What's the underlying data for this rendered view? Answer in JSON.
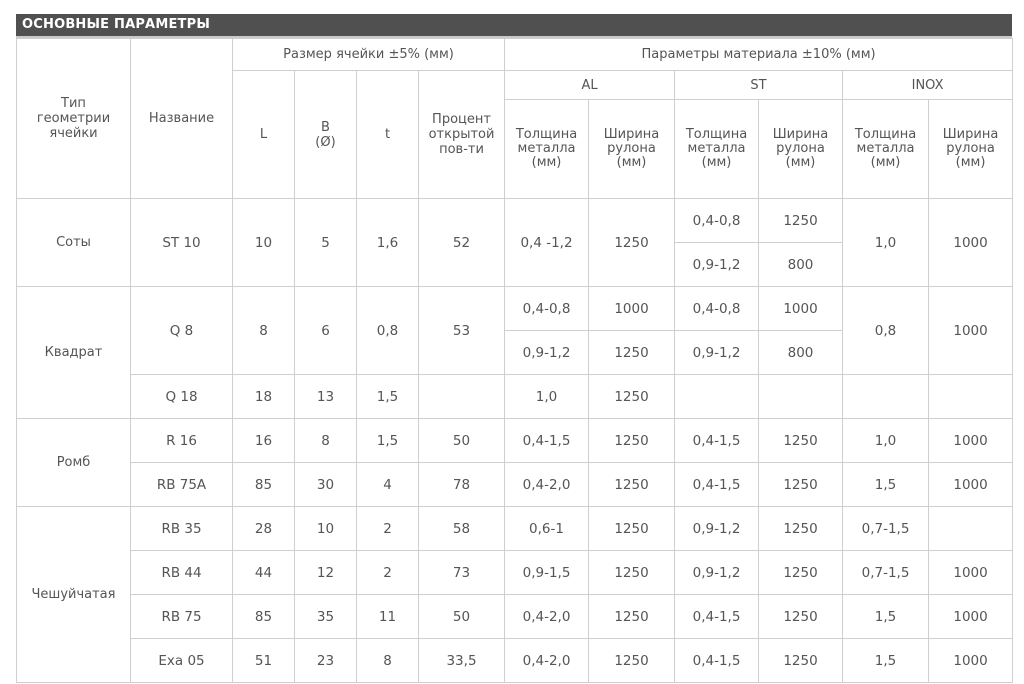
{
  "title": "ОСНОВНЫЕ ПАРАМЕТРЫ",
  "headers": {
    "type": "Тип геометрии ячейки",
    "name": "Название",
    "cell_size": "Размер ячейки  ±5% (мм)",
    "material": "Параметры материала ±10% (мм)",
    "L": "L",
    "B": "B",
    "B_sub": "(Ø)",
    "t": "t",
    "open": "Процент открытой пов-ти",
    "al": "AL",
    "st": "ST",
    "inox": "INOX",
    "thickness_l1": "Толщина",
    "thickness_l2": "металла",
    "width_l1": "Ширина",
    "width_l2": "рулона",
    "unit": "(мм)"
  },
  "types": {
    "soty": "Соты",
    "kvadrat": "Квадрат",
    "romb": "Ромб",
    "cheshuy": "Чешуйчатая"
  },
  "rows": {
    "st10": {
      "name": "ST 10",
      "L": "10",
      "B": "5",
      "t": "1,6",
      "open": "52",
      "al_t": "0,4 -1,2",
      "al_w": "1250",
      "st_t1": "0,4-0,8",
      "st_w1": "1250",
      "st_t2": "0,9-1,2",
      "st_w2": "800",
      "inox_t": "1,0",
      "inox_w": "1000"
    },
    "q8": {
      "name": "Q 8",
      "L": "8",
      "B": "6",
      "t": "0,8",
      "open": "53",
      "al_t1": "0,4-0,8",
      "al_w1": "1000",
      "st_t1": "0,4-0,8",
      "st_w1": "1000",
      "al_t2": "0,9-1,2",
      "al_w2": "1250",
      "st_t2": "0,9-1,2",
      "st_w2": "800",
      "inox_t": "0,8",
      "inox_w": "1000"
    },
    "q18": {
      "name": "Q 18",
      "L": "18",
      "B": "13",
      "t": "1,5",
      "al_t": "1,0",
      "al_w": "1250"
    },
    "r16": {
      "name": "R 16",
      "L": "16",
      "B": "8",
      "t": "1,5",
      "open": "50",
      "al_t": "0,4-1,5",
      "al_w": "1250",
      "st_t": "0,4-1,5",
      "st_w": "1250",
      "inox_t": "1,0",
      "inox_w": "1000"
    },
    "rb75a": {
      "name": "RB 75A",
      "L": "85",
      "B": "30",
      "t": "4",
      "open": "78",
      "al_t": "0,4-2,0",
      "al_w": "1250",
      "st_t": "0,4-1,5",
      "st_w": "1250",
      "inox_t": "1,5",
      "inox_w": "1000"
    },
    "rb35": {
      "name": "RB 35",
      "L": "28",
      "B": "10",
      "t": "2",
      "open": "58",
      "al_t": "0,6-1",
      "al_w": "1250",
      "st_t": "0,9-1,2",
      "st_w": "1250",
      "inox_t": "0,7-1,5"
    },
    "rb44": {
      "name": "RB 44",
      "L": "44",
      "B": "12",
      "t": "2",
      "open": "73",
      "al_t": "0,9-1,5",
      "al_w": "1250",
      "st_t": "0,9-1,2",
      "st_w": "1250",
      "inox_t": "0,7-1,5",
      "inox_w": "1000"
    },
    "rb75": {
      "name": "RB 75",
      "L": "85",
      "B": "35",
      "t": "11",
      "open": "50",
      "al_t": "0,4-2,0",
      "al_w": "1250",
      "st_t": "0,4-1,5",
      "st_w": "1250",
      "inox_t": "1,5",
      "inox_w": "1000"
    },
    "exa05": {
      "name": "Exa 05",
      "L": "51",
      "B": "23",
      "t": "8",
      "open": "33,5",
      "al_t": "0,4-2,0",
      "al_w": "1250",
      "st_t": "0,4-1,5",
      "st_w": "1250",
      "inox_t": "1,5",
      "inox_w": "1000"
    }
  }
}
